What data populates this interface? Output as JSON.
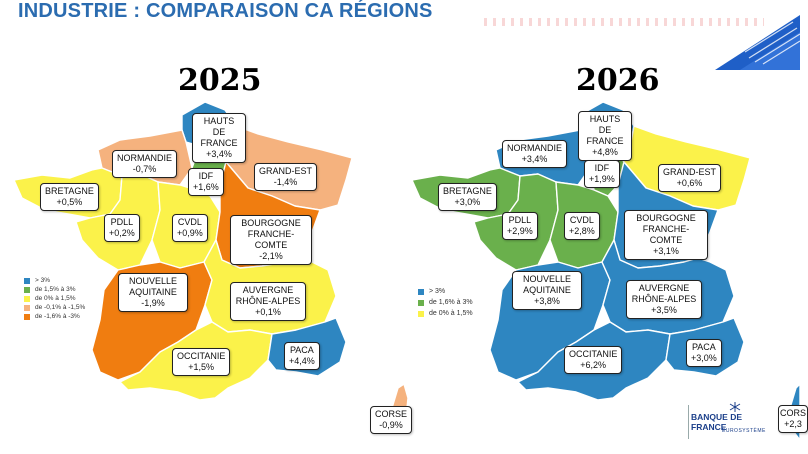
{
  "title": "INDUSTRIE : COMPARAISON CA RÉGIONS",
  "colors": {
    "blue": "#2e86c1",
    "green": "#6ab04c",
    "yellow": "#fbf24a",
    "peach": "#f5b27e",
    "orange": "#f07d10"
  },
  "map2025": {
    "year": "2025",
    "legend": [
      {
        "label": "> 3%",
        "color": "#2e86c1"
      },
      {
        "label": "de 1,5% à 3%",
        "color": "#6ab04c"
      },
      {
        "label": "de 0% à 1,5%",
        "color": "#fbf24a"
      },
      {
        "label": "de -0,1% à -1,5%",
        "color": "#f5b27e"
      },
      {
        "label": "de -1,6% à -3%",
        "color": "#f07d10"
      }
    ],
    "regions": {
      "hdf": {
        "name": "HAUTS DE FRANCE",
        "value": "+3,4%"
      },
      "normandie": {
        "name": "NORMANDIE",
        "value": "-0,7%"
      },
      "idf": {
        "name": "IDF",
        "value": "+1,6%"
      },
      "grandest": {
        "name": "GRAND-EST",
        "value": "-1,4%"
      },
      "bretagne": {
        "name": "BRETAGNE",
        "value": "+0,5%"
      },
      "pdll": {
        "name": "PDLL",
        "value": "+0,2%"
      },
      "cvdl": {
        "name": "CVDL",
        "value": "+0,9%"
      },
      "bfc": {
        "name": "BOURGOGNE FRANCHE-COMTE",
        "value": "-2,1%"
      },
      "na": {
        "name": "NOUVELLE AQUITAINE",
        "value": "-1,9%"
      },
      "ara": {
        "name": "AUVERGNE RHÔNE-ALPES",
        "value": "+0,1%"
      },
      "occitanie": {
        "name": "OCCITANIE",
        "value": "+1,5%"
      },
      "paca": {
        "name": "PACA",
        "value": "+4,4%"
      },
      "corse": {
        "name": "CORSE",
        "value": "-0,9%"
      }
    }
  },
  "map2026": {
    "year": "2026",
    "legend": [
      {
        "label": "> 3%",
        "color": "#2e86c1"
      },
      {
        "label": "de 1,6% à 3%",
        "color": "#6ab04c"
      },
      {
        "label": "de 0% à 1,5%",
        "color": "#fbf24a"
      }
    ],
    "regions": {
      "hdf": {
        "name": "HAUTS DE FRANCE",
        "value": "+4,8%"
      },
      "normandie": {
        "name": "NORMANDIE",
        "value": "+3,4%"
      },
      "idf": {
        "name": "IDF",
        "value": "+1,9%"
      },
      "grandest": {
        "name": "GRAND-EST",
        "value": "+0,6%"
      },
      "bretagne": {
        "name": "BRETAGNE",
        "value": "+3,0%"
      },
      "pdll": {
        "name": "PDLL",
        "value": "+2,9%"
      },
      "cvdl": {
        "name": "CVDL",
        "value": "+2,8%"
      },
      "bfc": {
        "name": "BOURGOGNE FRANCHE-COMTE",
        "value": "+3,1%"
      },
      "na": {
        "name": "NOUVELLE AQUITAINE",
        "value": "+3,8%"
      },
      "ara": {
        "name": "AUVERGNE RHÔNE-ALPES",
        "value": "+3,5%"
      },
      "occitanie": {
        "name": "OCCITANIE",
        "value": "+6,2%"
      },
      "paca": {
        "name": "PACA",
        "value": "+3,0%"
      },
      "corse": {
        "name": "CORS",
        "value": "+2,3"
      }
    }
  },
  "logo": {
    "name": "BANQUE DE FRANCE",
    "sub": "EUROSYSTÈME"
  }
}
